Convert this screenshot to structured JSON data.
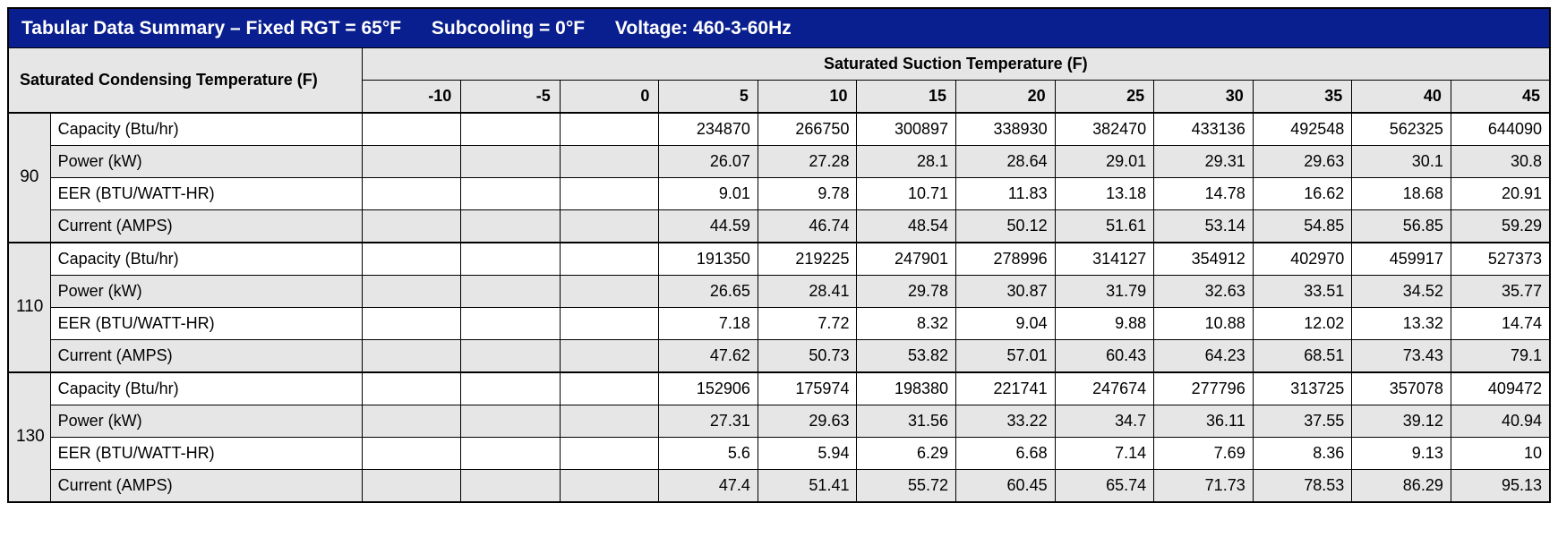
{
  "type": "table",
  "title": {
    "a": "Tabular Data Summary – Fixed RGT = 65°F",
    "b": "Subcooling = 0°F",
    "c": "Voltage: 460-3-60Hz"
  },
  "colors": {
    "title_bg": "#0a1f8f",
    "title_fg": "#ffffff",
    "header_bg": "#e6e6e6",
    "row_alt_bg": "#e6e6e6",
    "row_bg": "#ffffff",
    "border": "#000000"
  },
  "fonts": {
    "title_pt": 21,
    "body_pt": 18,
    "family": "Arial"
  },
  "row_header_label": "Saturated Condensing Temperature (F)",
  "col_header_label": "Saturated Suction Temperature (F)",
  "suction_temps": [
    "-10",
    "-5",
    "0",
    "5",
    "10",
    "15",
    "20",
    "25",
    "30",
    "35",
    "40",
    "45"
  ],
  "metric_labels": [
    "Capacity (Btu/hr)",
    "Power (kW)",
    "EER (BTU/WATT-HR)",
    "Current (AMPS)"
  ],
  "groups": [
    {
      "label": "90",
      "rows": [
        [
          "",
          "",
          "",
          "234870",
          "266750",
          "300897",
          "338930",
          "382470",
          "433136",
          "492548",
          "562325",
          "644090"
        ],
        [
          "",
          "",
          "",
          "26.07",
          "27.28",
          "28.1",
          "28.64",
          "29.01",
          "29.31",
          "29.63",
          "30.1",
          "30.8"
        ],
        [
          "",
          "",
          "",
          "9.01",
          "9.78",
          "10.71",
          "11.83",
          "13.18",
          "14.78",
          "16.62",
          "18.68",
          "20.91"
        ],
        [
          "",
          "",
          "",
          "44.59",
          "46.74",
          "48.54",
          "50.12",
          "51.61",
          "53.14",
          "54.85",
          "56.85",
          "59.29"
        ]
      ]
    },
    {
      "label": "110",
      "rows": [
        [
          "",
          "",
          "",
          "191350",
          "219225",
          "247901",
          "278996",
          "314127",
          "354912",
          "402970",
          "459917",
          "527373"
        ],
        [
          "",
          "",
          "",
          "26.65",
          "28.41",
          "29.78",
          "30.87",
          "31.79",
          "32.63",
          "33.51",
          "34.52",
          "35.77"
        ],
        [
          "",
          "",
          "",
          "7.18",
          "7.72",
          "8.32",
          "9.04",
          "9.88",
          "10.88",
          "12.02",
          "13.32",
          "14.74"
        ],
        [
          "",
          "",
          "",
          "47.62",
          "50.73",
          "53.82",
          "57.01",
          "60.43",
          "64.23",
          "68.51",
          "73.43",
          "79.1"
        ]
      ]
    },
    {
      "label": "130",
      "rows": [
        [
          "",
          "",
          "",
          "152906",
          "175974",
          "198380",
          "221741",
          "247674",
          "277796",
          "313725",
          "357078",
          "409472"
        ],
        [
          "",
          "",
          "",
          "27.31",
          "29.63",
          "31.56",
          "33.22",
          "34.7",
          "36.11",
          "37.55",
          "39.12",
          "40.94"
        ],
        [
          "",
          "",
          "",
          "5.6",
          "5.94",
          "6.29",
          "6.68",
          "7.14",
          "7.69",
          "8.36",
          "9.13",
          "10"
        ],
        [
          "",
          "",
          "",
          "47.4",
          "51.41",
          "55.72",
          "60.45",
          "65.74",
          "71.73",
          "78.53",
          "86.29",
          "95.13"
        ]
      ]
    }
  ]
}
